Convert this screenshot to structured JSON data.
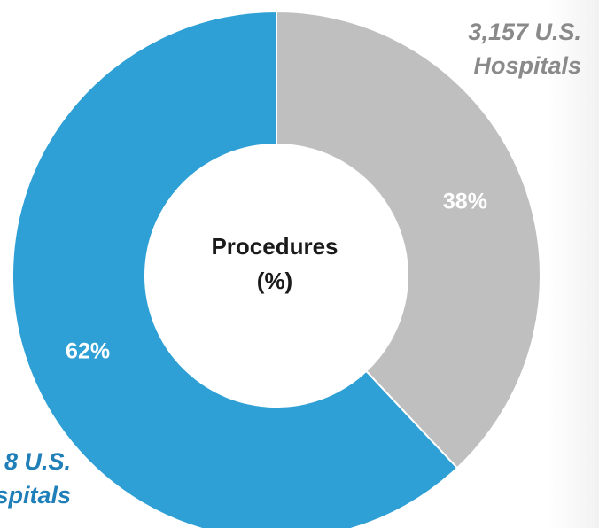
{
  "chart_data": {
    "type": "pie",
    "donut": true,
    "center_label": [
      "Procedures",
      "(%)"
    ],
    "slices": [
      {
        "value": 38,
        "label": "38%",
        "color": "#bfbfbf",
        "category": [
          "3,157 U.S.",
          "Hospitals"
        ],
        "category_color": "#8a8a8a"
      },
      {
        "value": 62,
        "label": "62%",
        "color": "#2ea0d6",
        "category": [
          "8 U.S.",
          "spitals"
        ],
        "category_color": "#1f7fb8"
      }
    ]
  }
}
